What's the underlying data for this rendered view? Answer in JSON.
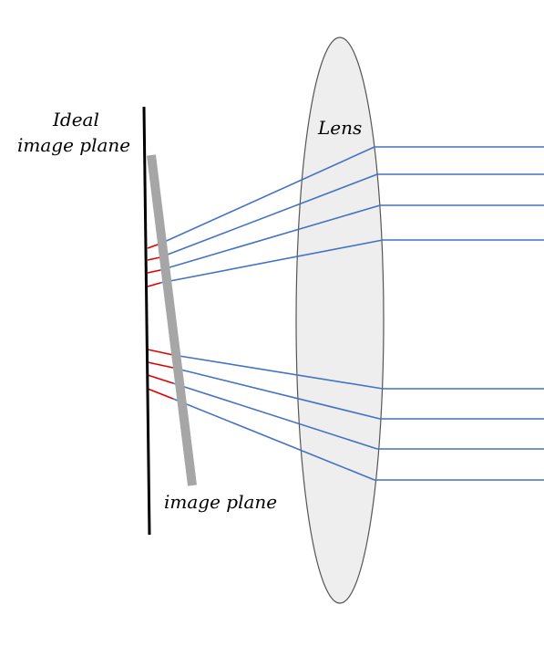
{
  "labels": {
    "ideal_line1": "Ideal",
    "ideal_line2": "image plane",
    "lens": "Lens",
    "image_plane": "image plane"
  },
  "colors": {
    "ray": "#4472c4",
    "offset_ray": "#e00000",
    "ideal_plane": "#000000",
    "image_plane": "#a6a6a6",
    "lens_fill": "#eeeeee",
    "lens_stroke": "#555555"
  },
  "rays": {
    "upper_count": 4,
    "lower_count": 4
  }
}
